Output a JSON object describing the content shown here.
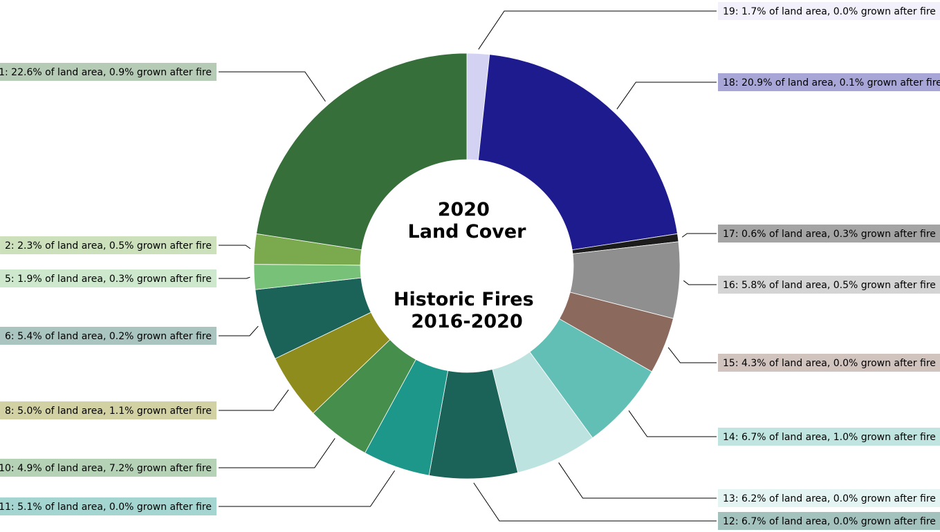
{
  "chart_data": {
    "type": "pie",
    "variant": "donut",
    "center_title_top": [
      "2020",
      "Land Cover"
    ],
    "center_title_bottom": [
      "Historic Fires",
      "2016-2020"
    ],
    "start_angle_deg": 90,
    "direction": "clockwise",
    "slices": [
      {
        "id": "19",
        "land_pct": 1.7,
        "fire_pct": 0.0,
        "label": "19: 1.7% of land area, 0.0% grown after fire",
        "color": "#d4d2f2",
        "label_bg": "#f2f1fb"
      },
      {
        "id": "18",
        "land_pct": 20.9,
        "fire_pct": 0.1,
        "label": "18: 20.9% of land area, 0.1% grown after fire",
        "color": "#1e1b8f",
        "label_bg": "#a8a6d6"
      },
      {
        "id": "17",
        "land_pct": 0.6,
        "fire_pct": 0.3,
        "label": "17: 0.6% of land area, 0.3% grown after fire",
        "color": "#1c1c1c",
        "label_bg": "#a4a4a4"
      },
      {
        "id": "16",
        "land_pct": 5.8,
        "fire_pct": 0.5,
        "label": "16: 5.8% of land area, 0.5% grown after fire",
        "color": "#8f8f8f",
        "label_bg": "#d4d4d4"
      },
      {
        "id": "15",
        "land_pct": 4.3,
        "fire_pct": 0.0,
        "label": "15: 4.3% of land area, 0.0% grown after fire",
        "color": "#8b695d",
        "label_bg": "#d1c3be"
      },
      {
        "id": "14",
        "land_pct": 6.7,
        "fire_pct": 1.0,
        "label": "14: 6.7% of land area, 1.0% grown after fire",
        "color": "#62bfb5",
        "label_bg": "#c0e5e1"
      },
      {
        "id": "13",
        "land_pct": 6.2,
        "fire_pct": 0.0,
        "label": "13: 6.2% of land area, 0.0% grown after fire",
        "color": "#bce3df",
        "label_bg": "#e4f4f2"
      },
      {
        "id": "12",
        "land_pct": 6.7,
        "fire_pct": 0.0,
        "label": "12: 6.7% of land area, 0.0% grown after fire",
        "color": "#1b6359",
        "label_bg": "#a3c1bd"
      },
      {
        "id": "11",
        "land_pct": 5.1,
        "fire_pct": 0.0,
        "label": "11: 5.1% of land area, 0.0% grown after fire",
        "color": "#1d978a",
        "label_bg": "#a5d5d0"
      },
      {
        "id": "10",
        "land_pct": 4.9,
        "fire_pct": 7.2,
        "label": "10: 4.9% of land area, 7.2% grown after fire",
        "color": "#468e4c",
        "label_bg": "#b5d2b7"
      },
      {
        "id": "8",
        "land_pct": 5.0,
        "fire_pct": 1.1,
        "label": "8: 5.0% of land area, 1.1% grown after fire",
        "color": "#8e8c1c",
        "label_bg": "#d2d1a4"
      },
      {
        "id": "6",
        "land_pct": 5.4,
        "fire_pct": 0.2,
        "label": "6: 5.4% of land area, 0.2% grown after fire",
        "color": "#1b6359",
        "label_bg": "#aac4c0"
      },
      {
        "id": "5",
        "land_pct": 1.9,
        "fire_pct": 0.3,
        "label": "5: 1.9% of land area, 0.3% grown after fire",
        "color": "#78c178",
        "label_bg": "#cde8cd"
      },
      {
        "id": "2",
        "land_pct": 2.3,
        "fire_pct": 0.5,
        "label": "2: 2.3% of land area, 0.5% grown after fire",
        "color": "#7aaa4d",
        "label_bg": "#cde0bc"
      },
      {
        "id": "1",
        "land_pct": 22.6,
        "fire_pct": 0.9,
        "label": "1: 22.6% of land area, 0.9% grown after fire",
        "color": "#366f39",
        "label_bg": "#b5cbb6"
      }
    ]
  }
}
